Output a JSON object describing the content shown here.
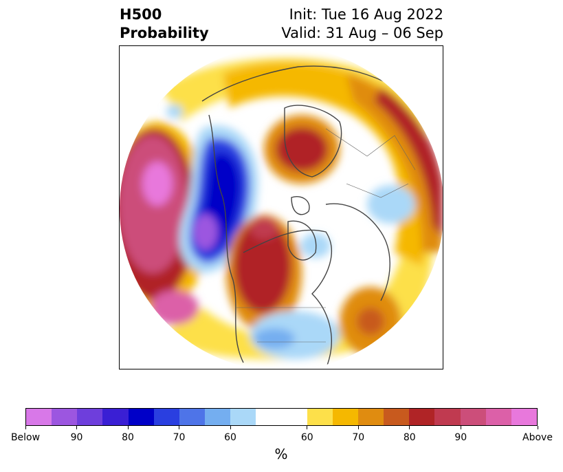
{
  "header": {
    "title_line1": "H500",
    "title_line2": "Probability",
    "init_text": "Init: Tue 16 Aug 2022",
    "valid_text": "Valid: 31 Aug – 06 Sep"
  },
  "colorbar": {
    "unit_label": "%",
    "below_colors": [
      "#d878e8",
      "#9c56e0",
      "#6e3edc",
      "#3a1fd4",
      "#0000c8",
      "#2a3fe0",
      "#4e74e8",
      "#74aef0",
      "#aad8f8"
    ],
    "neutral_color": "#ffffff",
    "above_colors": [
      "#fde04a",
      "#f5b800",
      "#e08c10",
      "#c85a1e",
      "#b02426",
      "#c03a50",
      "#cc4e7a",
      "#dc60a8",
      "#e878dc"
    ],
    "tick_labels": [
      "Below",
      "90",
      "80",
      "70",
      "60",
      "60",
      "70",
      "80",
      "90",
      "Above"
    ]
  },
  "map": {
    "projection": "north-polar-stereographic",
    "anomalies": [
      {
        "region": "north-pacific",
        "sign": "above",
        "max_category": "Above"
      },
      {
        "region": "western-north-america-coast",
        "sign": "below",
        "max_category": "90"
      },
      {
        "region": "central-canada",
        "sign": "above",
        "max_category": "80"
      },
      {
        "region": "scandinavia-west-russia",
        "sign": "above",
        "max_category": "80"
      },
      {
        "region": "eastern-united-states",
        "sign": "below",
        "max_category": "60"
      },
      {
        "region": "central-atlantic",
        "sign": "above",
        "max_category": "70"
      },
      {
        "region": "central-asia",
        "sign": "below",
        "max_category": "60"
      }
    ]
  }
}
